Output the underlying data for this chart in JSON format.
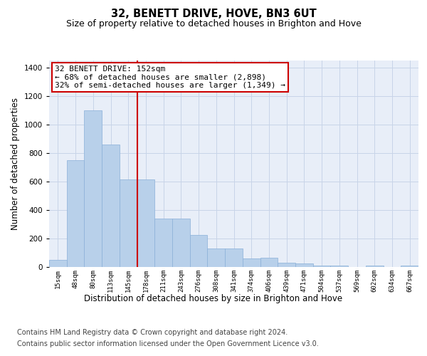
{
  "title": "32, BENETT DRIVE, HOVE, BN3 6UT",
  "subtitle": "Size of property relative to detached houses in Brighton and Hove",
  "xlabel": "Distribution of detached houses by size in Brighton and Hove",
  "ylabel": "Number of detached properties",
  "footer_line1": "Contains HM Land Registry data © Crown copyright and database right 2024.",
  "footer_line2": "Contains public sector information licensed under the Open Government Licence v3.0.",
  "bin_labels": [
    "15sqm",
    "48sqm",
    "80sqm",
    "113sqm",
    "145sqm",
    "178sqm",
    "211sqm",
    "243sqm",
    "276sqm",
    "308sqm",
    "341sqm",
    "374sqm",
    "406sqm",
    "439sqm",
    "471sqm",
    "504sqm",
    "537sqm",
    "569sqm",
    "602sqm",
    "634sqm",
    "667sqm"
  ],
  "bar_values": [
    50,
    750,
    1100,
    860,
    615,
    615,
    340,
    340,
    225,
    130,
    130,
    60,
    65,
    30,
    25,
    10,
    10,
    0,
    10,
    0,
    10
  ],
  "bar_color": "#b8d0ea",
  "bar_edge_color": "#8ab0d8",
  "grid_color": "#c8d4e8",
  "background_color": "#e8eef8",
  "red_line_x": 4.52,
  "annotation_text_line1": "32 BENETT DRIVE: 152sqm",
  "annotation_text_line2": "← 68% of detached houses are smaller (2,898)",
  "annotation_text_line3": "32% of semi-detached houses are larger (1,349) →",
  "annotation_box_color": "#ffffff",
  "annotation_box_edge": "#cc0000",
  "red_line_color": "#cc0000",
  "ylim": [
    0,
    1450
  ],
  "title_fontsize": 10.5,
  "subtitle_fontsize": 9,
  "ylabel_fontsize": 8.5,
  "xlabel_fontsize": 8.5,
  "annotation_fontsize": 8,
  "footer_fontsize": 7
}
